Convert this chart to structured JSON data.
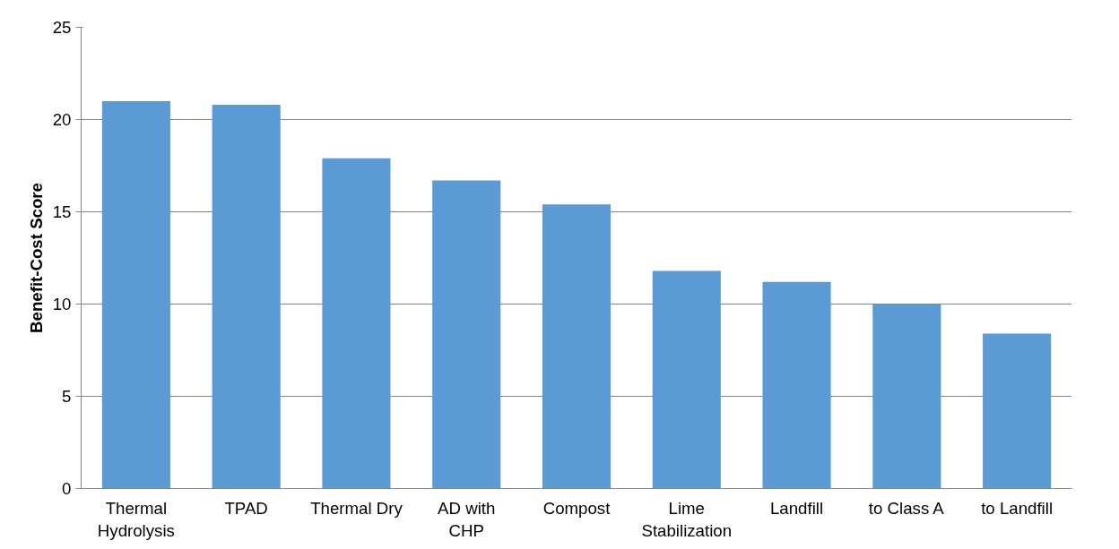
{
  "chart_data": {
    "type": "bar",
    "ylabel": "Benefit-Cost Score",
    "categories": [
      "Thermal\nHydrolysis",
      "TPAD",
      "Thermal Dry",
      "AD with\nCHP",
      "Compost",
      "Lime\nStabilization",
      "Landfill",
      "to Class A",
      "to Landfill"
    ],
    "values": [
      21.0,
      20.8,
      17.9,
      16.7,
      15.4,
      11.8,
      11.2,
      10.0,
      8.4
    ],
    "color": "#5b9bd5",
    "ylim": [
      0,
      25
    ],
    "yticks": [
      0,
      5,
      10,
      15,
      20,
      25
    ],
    "grid": "y"
  }
}
